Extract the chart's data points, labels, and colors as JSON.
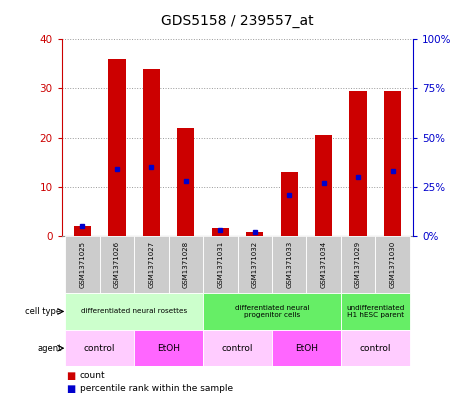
{
  "title": "GDS5158 / 239557_at",
  "samples": [
    "GSM1371025",
    "GSM1371026",
    "GSM1371027",
    "GSM1371028",
    "GSM1371031",
    "GSM1371032",
    "GSM1371033",
    "GSM1371034",
    "GSM1371029",
    "GSM1371030"
  ],
  "counts": [
    2.0,
    36.0,
    34.0,
    22.0,
    1.5,
    0.7,
    13.0,
    20.5,
    29.5,
    29.5
  ],
  "percentiles": [
    5,
    34,
    35,
    28,
    3,
    2,
    21,
    27,
    30,
    33
  ],
  "ylim_left": [
    0,
    40
  ],
  "ylim_right": [
    0,
    100
  ],
  "yticks_left": [
    0,
    10,
    20,
    30,
    40
  ],
  "yticks_right": [
    0,
    25,
    50,
    75,
    100
  ],
  "yticklabels_left": [
    "0",
    "10",
    "20",
    "30",
    "40"
  ],
  "yticklabels_right": [
    "0%",
    "25%",
    "50%",
    "75%",
    "100%"
  ],
  "bar_color": "#cc0000",
  "percentile_color": "#0000cc",
  "bar_width": 0.5,
  "cell_groups": [
    {
      "label": "differentiated neural rosettes",
      "start": 0,
      "end": 3,
      "color": "#ccffcc"
    },
    {
      "label": "differentiated neural\nprogenitor cells",
      "start": 4,
      "end": 7,
      "color": "#66ee66"
    },
    {
      "label": "undifferentiated\nH1 hESC parent",
      "start": 8,
      "end": 9,
      "color": "#66ee66"
    }
  ],
  "agent_groups": [
    {
      "label": "control",
      "start": 0,
      "end": 1,
      "color": "#ffccff"
    },
    {
      "label": "EtOH",
      "start": 2,
      "end": 3,
      "color": "#ff66ff"
    },
    {
      "label": "control",
      "start": 4,
      "end": 5,
      "color": "#ffccff"
    },
    {
      "label": "EtOH",
      "start": 6,
      "end": 7,
      "color": "#ff66ff"
    },
    {
      "label": "control",
      "start": 8,
      "end": 9,
      "color": "#ffccff"
    }
  ],
  "legend_count_color": "#cc0000",
  "legend_percentile_color": "#0000cc",
  "axis_left_color": "#cc0000",
  "axis_right_color": "#0000cc",
  "grid_color": "#999999",
  "sample_bg": "#cccccc"
}
